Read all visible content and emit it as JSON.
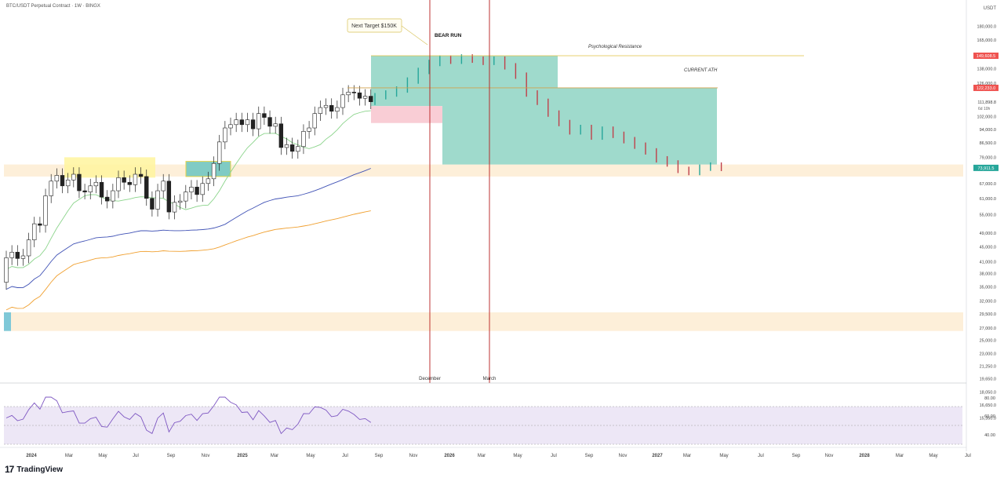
{
  "header": {
    "symbol_line": "BTC/USDT Perpetual Contract · 1W · BINGX"
  },
  "brand": {
    "name": "TradingView"
  },
  "colors": {
    "green": "#26a69a",
    "red": "#ef5350",
    "candle": "#222222",
    "zone_yellow": "#fff59d",
    "zone_band": "#fdebcf",
    "teal_box": "#7fcdbb",
    "pink_box": "#f8c8d0",
    "ma20": "#8bd48b",
    "ma50": "#3f51b5",
    "ma100": "#f0a030",
    "vline": "#b71c1c",
    "target_line": "#e0c040",
    "rsi_line": "#7e57c2",
    "rsi_bg": "#ede7f6"
  },
  "chart_data": {
    "type": "candlestick",
    "title": "BTC/USDT Perpetual Contract · 1W · BINGX",
    "y_unit": "USDT",
    "y_scale": "log",
    "y_ticks": [
      "180,000.0",
      "165,000.0",
      "149,608.5",
      "138,000.0",
      "126,000.0",
      "122,233.0",
      "111,898.8",
      "102,000.0",
      "94,000.0",
      "86,500.0",
      "79,000.0",
      "73,911.5",
      "67,000.0",
      "61,000.0",
      "55,000.0",
      "49,000.0",
      "45,000.0",
      "41,000.0",
      "38,000.0",
      "35,000.0",
      "32,000.0",
      "29,500.0",
      "27,000.0",
      "25,000.0",
      "23,000.0",
      "21,250.0",
      "19,650.0",
      "18,050.0",
      "16,650.0",
      "15,350.0"
    ],
    "x_ticks": [
      "2024",
      "Mar",
      "May",
      "Jul",
      "Sep",
      "Nov",
      "2025",
      "Mar",
      "May",
      "Jul",
      "Sep",
      "Nov",
      "2026",
      "Mar",
      "May",
      "Jul",
      "Sep",
      "Nov",
      "2027",
      "Mar",
      "May",
      "Jul",
      "Sep",
      "Nov",
      "2028",
      "Mar",
      "May",
      "Jul"
    ],
    "annotations": {
      "next_target": "Next Target $150K",
      "bear_run": "BEAR RUN",
      "psych_resistance": "Psychological Resistance",
      "current_ath": "CURRENT ATH",
      "vline_1": "December",
      "vline_2": "March"
    },
    "price_labels": {
      "resistance": "149,608.5",
      "ath": "122,233.0",
      "current": "111,898.8",
      "countdown": "6d 10h",
      "projection_end": "73,911.5"
    },
    "levels": {
      "resistance": 149608.5,
      "ath": 122233,
      "current": 111898.8,
      "support_zone": [
        70000,
        75500
      ],
      "low_zone": [
        26500,
        29800
      ]
    },
    "candles_weekly_close": [
      42000,
      43500,
      41800,
      42500,
      47000,
      52000,
      51500,
      62000,
      68000,
      70500,
      66000,
      68500,
      71000,
      64000,
      63500,
      66000,
      67500,
      61500,
      60000,
      64000,
      69500,
      67500,
      66500,
      71000,
      70000,
      61000,
      57000,
      64000,
      68000,
      56000,
      59500,
      60000,
      63500,
      65500,
      62500,
      67000,
      69000,
      76000,
      87000,
      95000,
      97000,
      100000,
      97000,
      100000,
      94500,
      104000,
      101500,
      96000,
      97500,
      84000,
      85500,
      82000,
      84500,
      93000,
      95000,
      104000,
      108000,
      109500,
      105500,
      108000,
      117000,
      119000,
      118500,
      114500,
      116000,
      112000
    ],
    "projected_path": [
      116000,
      118000,
      121000,
      128000,
      136000,
      143000,
      147000,
      145000,
      148000,
      146000,
      144000,
      146000,
      140000,
      132000,
      118000,
      112000,
      104000,
      98000,
      93000,
      95000,
      90000,
      94000,
      91000,
      88000,
      85000,
      82000,
      78000,
      76000,
      73000,
      72000,
      74000,
      75000,
      73911.5
    ],
    "rsi": {
      "ticks": [
        "80.00",
        "60.00",
        "40.00"
      ],
      "upper": 70,
      "lower": 30
    }
  }
}
